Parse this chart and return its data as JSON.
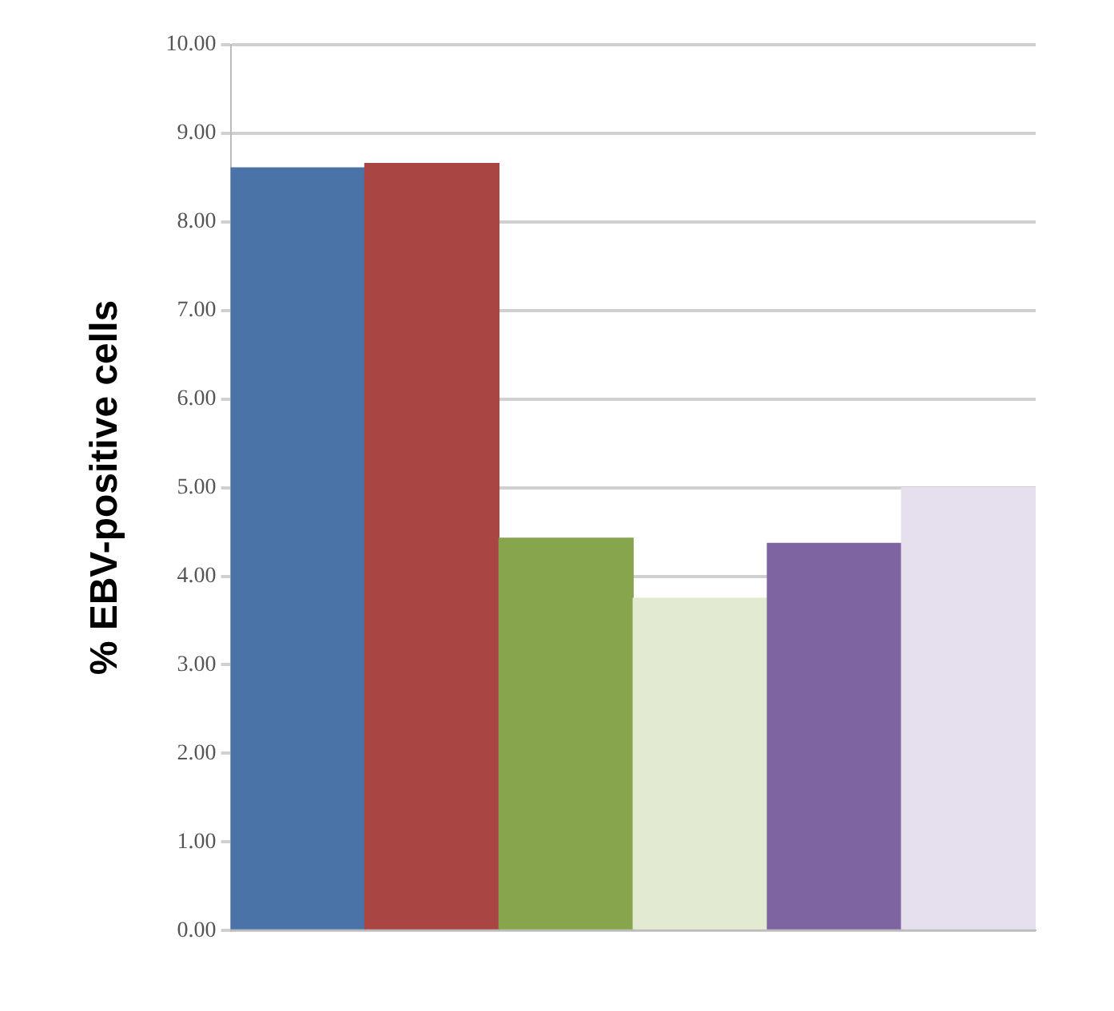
{
  "chart_data": {
    "type": "bar",
    "ylabel": "% EBV-positive cells",
    "categories": [
      null,
      null,
      null,
      null,
      null,
      null
    ],
    "values": [
      8.61,
      8.66,
      4.43,
      3.75,
      4.37,
      5.0
    ],
    "colors": [
      "#4a74a8",
      "#a94543",
      "#87a54c",
      "#e2ebd2",
      "#7f64a2",
      "#e6e0ee"
    ],
    "ylim": [
      0,
      10
    ],
    "yticks": [
      {
        "value": 0,
        "label": "0.00"
      },
      {
        "value": 1,
        "label": "1.00"
      },
      {
        "value": 2,
        "label": "2.00"
      },
      {
        "value": 3,
        "label": "3.00"
      },
      {
        "value": 4,
        "label": "4.00"
      },
      {
        "value": 5,
        "label": "5.00"
      },
      {
        "value": 6,
        "label": "6.00"
      },
      {
        "value": 7,
        "label": "7.00"
      },
      {
        "value": 8,
        "label": "8.00"
      },
      {
        "value": 9,
        "label": "9.00"
      },
      {
        "value": 10,
        "label": "10.00"
      }
    ],
    "grid": "y",
    "legend": false
  }
}
